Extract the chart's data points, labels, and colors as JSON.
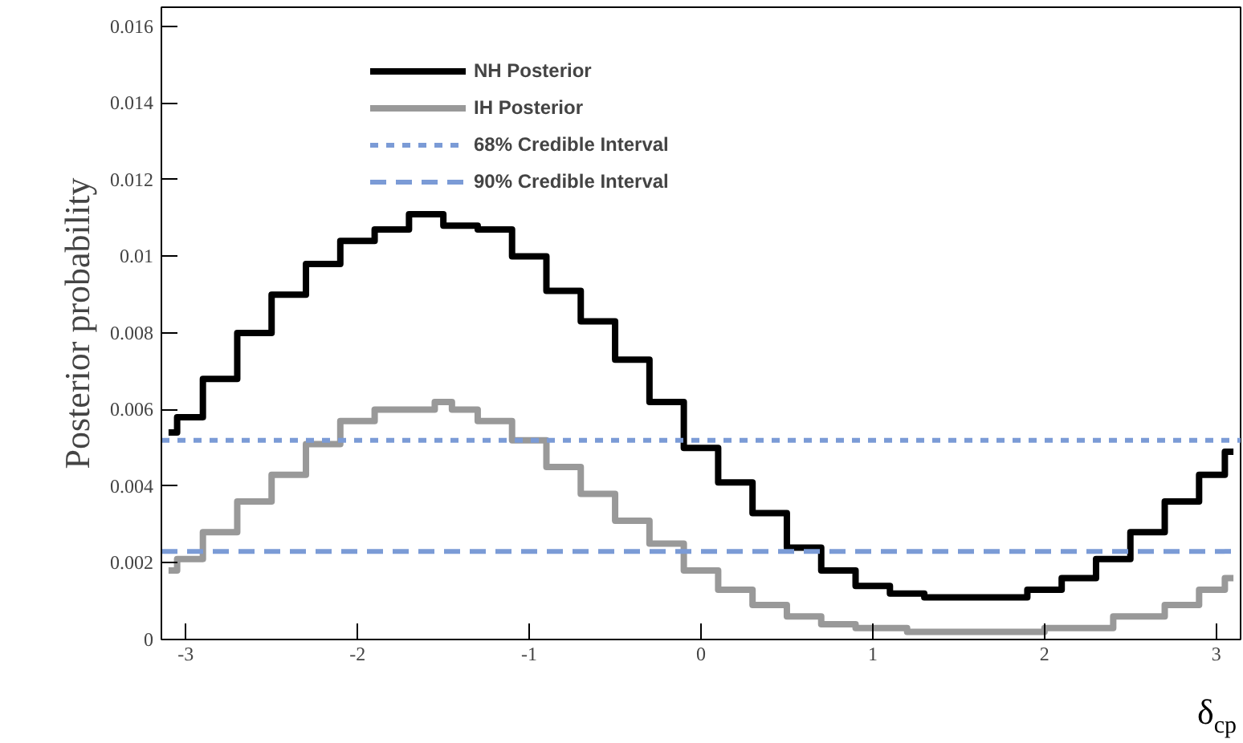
{
  "chart_data": {
    "type": "step",
    "ylabel": "Posterior probability",
    "xlabel": "δ$_{cp}$",
    "xlim": [
      -3.1416,
      3.1416
    ],
    "ylim": [
      0,
      0.0165
    ],
    "xticks": [
      -3,
      -2,
      -1,
      0,
      1,
      2,
      3
    ],
    "yticks": [
      0,
      0.002,
      0.004,
      0.006,
      0.008,
      0.01,
      0.012,
      0.014,
      0.016
    ],
    "grid": false,
    "legend": "top",
    "series": [
      {
        "name": "NH Posterior",
        "color": "#000000",
        "x": [
          -3.1,
          -3.0,
          -2.8,
          -2.6,
          -2.4,
          -2.2,
          -2.0,
          -1.8,
          -1.6,
          -1.4,
          -1.2,
          -1.0,
          -0.8,
          -0.6,
          -0.4,
          -0.2,
          0.0,
          0.2,
          0.4,
          0.6,
          0.8,
          1.0,
          1.2,
          1.4,
          1.6,
          1.8,
          2.0,
          2.2,
          2.4,
          2.6,
          2.8,
          3.0,
          3.1
        ],
        "values": [
          0.0054,
          0.0058,
          0.0068,
          0.008,
          0.009,
          0.0098,
          0.0104,
          0.0107,
          0.0111,
          0.0108,
          0.0107,
          0.01,
          0.0091,
          0.0083,
          0.0073,
          0.0062,
          0.005,
          0.0041,
          0.0033,
          0.0024,
          0.0018,
          0.0014,
          0.0012,
          0.0011,
          0.0011,
          0.0011,
          0.0013,
          0.0016,
          0.0021,
          0.0028,
          0.0036,
          0.0043,
          0.0049
        ]
      },
      {
        "name": "IH Posterior",
        "color": "#999999",
        "x": [
          -3.1,
          -3.0,
          -2.8,
          -2.6,
          -2.4,
          -2.2,
          -2.0,
          -1.8,
          -1.6,
          -1.5,
          -1.4,
          -1.2,
          -1.0,
          -0.8,
          -0.6,
          -0.4,
          -0.2,
          0.0,
          0.2,
          0.4,
          0.6,
          0.8,
          1.0,
          1.4,
          1.8,
          2.2,
          2.6,
          2.8,
          3.0,
          3.1
        ],
        "values": [
          0.0018,
          0.0021,
          0.0028,
          0.0036,
          0.0043,
          0.0051,
          0.0057,
          0.006,
          0.006,
          0.0062,
          0.006,
          0.0057,
          0.0052,
          0.0045,
          0.0038,
          0.0031,
          0.0025,
          0.0018,
          0.0013,
          0.0009,
          0.0006,
          0.0004,
          0.0003,
          0.0002,
          0.0002,
          0.0003,
          0.0006,
          0.0009,
          0.0013,
          0.0016
        ]
      }
    ],
    "ref_lines": [
      {
        "axis": "y",
        "value": 0.0052,
        "label": "68% Credible Interval",
        "color": "#7b9bd6",
        "line_style": "dotted"
      },
      {
        "axis": "y",
        "value": 0.0023,
        "label": "90% Credible Interval",
        "color": "#7b9bd6",
        "line_style": "dashed"
      }
    ]
  }
}
